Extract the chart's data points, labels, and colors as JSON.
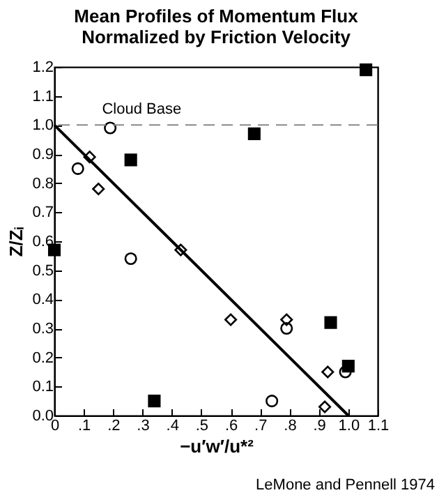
{
  "chart_data": {
    "type": "scatter",
    "title": "Mean Profiles of Momentum Flux\nNormalized by Friction Velocity",
    "xlabel": "−u′w′/u*²",
    "ylabel": "Z/Zᵢ",
    "series": [
      {
        "color": "#000000",
        "marker": "circle",
        "x": [
          0.08,
          0.19,
          0.26,
          0.74,
          0.79,
          0.99
        ],
        "values": [
          0.85,
          0.99,
          0.54,
          0.05,
          0.3,
          0.15
        ]
      },
      {
        "color": "#000000",
        "marker": "diamond",
        "x": [
          0.12,
          0.15,
          0.43,
          0.6,
          0.79,
          0.93,
          0.92
        ],
        "values": [
          0.89,
          0.78,
          0.57,
          0.33,
          0.33,
          0.15,
          0.03
        ]
      },
      {
        "color": "#000000",
        "marker": "square",
        "x": [
          0.0,
          0.26,
          0.34,
          0.68,
          0.94,
          1.0,
          1.06
        ],
        "values": [
          0.57,
          0.88,
          0.05,
          0.97,
          0.32,
          0.17,
          1.19
        ]
      },
      {
        "type": "line",
        "color": "#000000",
        "marker": "none",
        "x": [
          0,
          1.0
        ],
        "values": [
          1.0,
          0
        ]
      }
    ],
    "xlim": [
      0,
      1.1
    ],
    "xticks": [
      0,
      {
        "value": 0.1,
        "label": ".1"
      },
      {
        "value": 0.2,
        "label": ".2"
      },
      {
        "value": 0.3,
        "label": ".3"
      },
      {
        "value": 0.4,
        "label": ".4"
      },
      {
        "value": 0.5,
        "label": ".5"
      },
      {
        "value": 0.6,
        "label": ".6"
      },
      {
        "value": 0.7,
        "label": ".7"
      },
      {
        "value": 0.8,
        "label": ".8"
      },
      {
        "value": 0.9,
        "label": ".9"
      },
      {
        "value": 1.0,
        "label": "1.0"
      },
      1.1
    ],
    "ylim": [
      0,
      1.2
    ],
    "yticks": [
      {
        "value": 0,
        "label": "0.0"
      },
      0.1,
      0.2,
      0.3,
      0.4,
      0.5,
      0.6,
      0.7,
      0.8,
      0.9,
      {
        "value": 1.0,
        "label": "1.0"
      },
      1.1,
      1.2
    ],
    "ref_lines": [
      {
        "axis": "y",
        "value": 1.0,
        "label": "Cloud Base",
        "color": "#888888",
        "line_style": "dashed"
      }
    ],
    "grid": false,
    "annotations": [
      "LeMone and Pennell 1974"
    ]
  }
}
